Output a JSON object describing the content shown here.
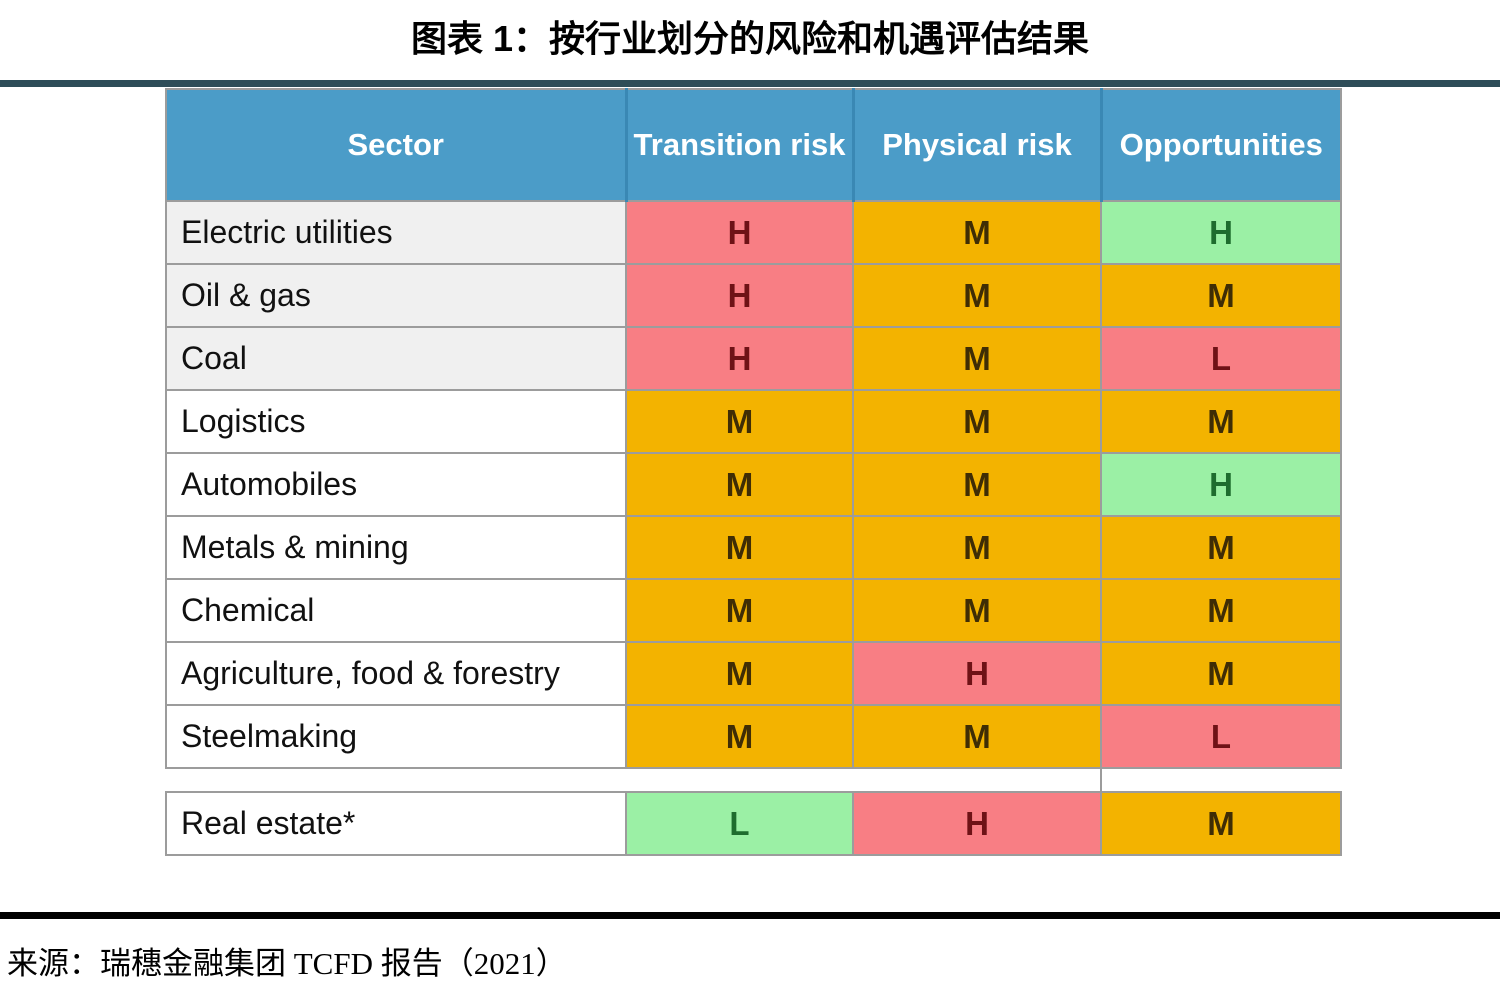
{
  "source_line": "来源：瑞穗金融集团 TCFD 报告（2021）",
  "colors": {
    "header_bg": "#4B9CC8",
    "header_text": "#FFFFFF",
    "red_bg": "#F87E84",
    "red_text": "#6E1216",
    "amber_bg": "#F3B300",
    "amber_text": "#3F2D05",
    "green_bg": "#9BF0A5",
    "green_text": "#1E6C2E",
    "shaded_row_bg": "#F0F0F0",
    "grid": "#9C9C9C",
    "top_rule": "#2E4D58",
    "bottom_rule": "#000000"
  },
  "chart_data": {
    "type": "table",
    "title": "图表 1：按行业划分的风险和机遇评估结果",
    "columns": [
      "Sector",
      "Transition risk",
      "Physical risk",
      "Opportunities"
    ],
    "rows": [
      {
        "sector": "Electric utilities",
        "shaded": true,
        "cells": [
          {
            "value": "H",
            "tone": "red"
          },
          {
            "value": "M",
            "tone": "amber"
          },
          {
            "value": "H",
            "tone": "green"
          }
        ]
      },
      {
        "sector": "Oil & gas",
        "shaded": true,
        "cells": [
          {
            "value": "H",
            "tone": "red"
          },
          {
            "value": "M",
            "tone": "amber"
          },
          {
            "value": "M",
            "tone": "amber"
          }
        ]
      },
      {
        "sector": "Coal",
        "shaded": true,
        "cells": [
          {
            "value": "H",
            "tone": "red"
          },
          {
            "value": "M",
            "tone": "amber"
          },
          {
            "value": "L",
            "tone": "red"
          }
        ]
      },
      {
        "sector": "Logistics",
        "shaded": false,
        "cells": [
          {
            "value": "M",
            "tone": "amber"
          },
          {
            "value": "M",
            "tone": "amber"
          },
          {
            "value": "M",
            "tone": "amber"
          }
        ]
      },
      {
        "sector": "Automobiles",
        "shaded": false,
        "cells": [
          {
            "value": "M",
            "tone": "amber"
          },
          {
            "value": "M",
            "tone": "amber"
          },
          {
            "value": "H",
            "tone": "green"
          }
        ]
      },
      {
        "sector": "Metals & mining",
        "shaded": false,
        "cells": [
          {
            "value": "M",
            "tone": "amber"
          },
          {
            "value": "M",
            "tone": "amber"
          },
          {
            "value": "M",
            "tone": "amber"
          }
        ]
      },
      {
        "sector": "Chemical",
        "shaded": false,
        "cells": [
          {
            "value": "M",
            "tone": "amber"
          },
          {
            "value": "M",
            "tone": "amber"
          },
          {
            "value": "M",
            "tone": "amber"
          }
        ]
      },
      {
        "sector": "Agriculture, food & forestry",
        "shaded": false,
        "cells": [
          {
            "value": "M",
            "tone": "amber"
          },
          {
            "value": "H",
            "tone": "red"
          },
          {
            "value": "M",
            "tone": "amber"
          }
        ]
      },
      {
        "sector": "Steelmaking",
        "shaded": false,
        "cells": [
          {
            "value": "M",
            "tone": "amber"
          },
          {
            "value": "M",
            "tone": "amber"
          },
          {
            "value": "L",
            "tone": "red"
          }
        ]
      },
      {
        "separator": true
      },
      {
        "sector": "Real estate*",
        "shaded": false,
        "cells": [
          {
            "value": "L",
            "tone": "green"
          },
          {
            "value": "H",
            "tone": "red"
          },
          {
            "value": "M",
            "tone": "amber"
          }
        ]
      }
    ]
  }
}
